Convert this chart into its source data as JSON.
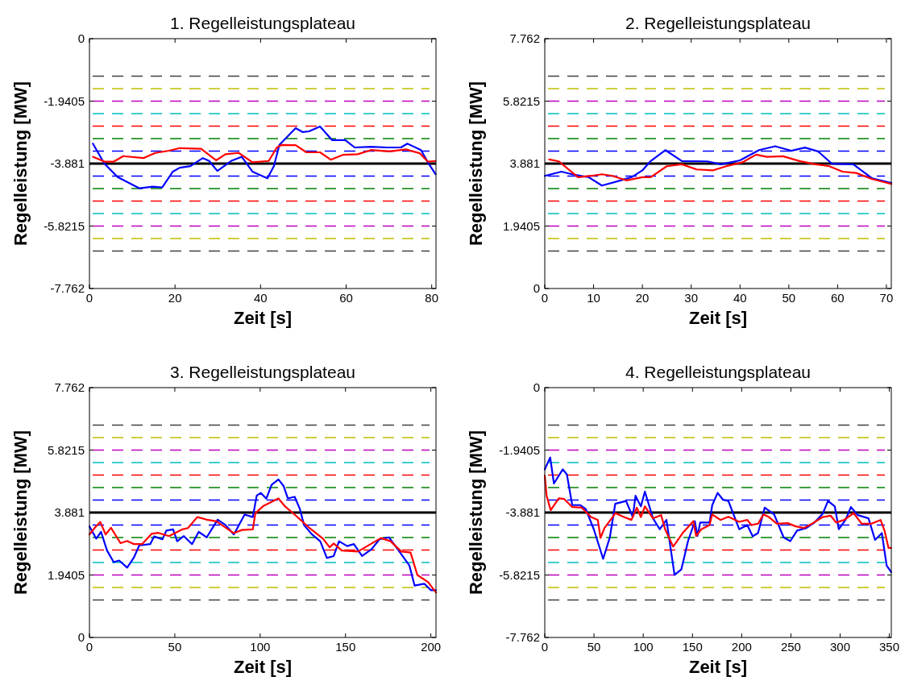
{
  "chart_data": [
    {
      "type": "line",
      "title": "1. Regelleistungsplateau",
      "xlabel": "Zeit [s]",
      "ylabel": "Regelleistung [MW]",
      "xlim": [
        0,
        81
      ],
      "xticks": [
        0,
        20,
        40,
        60,
        80
      ],
      "ylim": [
        -7.762,
        0
      ],
      "yticks": [
        -7.762,
        -5.8215,
        -3.881,
        -1.9405,
        0
      ],
      "ref_lines": [
        {
          "axis": "y",
          "value": -1.1643,
          "color": "#404040",
          "line_style": "dashed"
        },
        {
          "axis": "y",
          "value": -1.5524,
          "color": "#bfbf00",
          "line_style": "dashed"
        },
        {
          "axis": "y",
          "value": -1.9405,
          "color": "#bf00bf",
          "line_style": "dashed"
        },
        {
          "axis": "y",
          "value": -2.3286,
          "color": "#00bfbf",
          "line_style": "dashed"
        },
        {
          "axis": "y",
          "value": -2.7167,
          "color": "#ff0000",
          "line_style": "dashed"
        },
        {
          "axis": "y",
          "value": -3.1048,
          "color": "#008000",
          "line_style": "dashed"
        },
        {
          "axis": "y",
          "value": -3.4929,
          "color": "#0000ff",
          "line_style": "dashed"
        },
        {
          "axis": "y",
          "value": -4.2691,
          "color": "#0000ff",
          "line_style": "dashed"
        },
        {
          "axis": "y",
          "value": -4.6572,
          "color": "#008000",
          "line_style": "dashed"
        },
        {
          "axis": "y",
          "value": -5.0453,
          "color": "#ff0000",
          "line_style": "dashed"
        },
        {
          "axis": "y",
          "value": -5.4334,
          "color": "#00bfbf",
          "line_style": "dashed"
        },
        {
          "axis": "y",
          "value": -5.8215,
          "color": "#bf00bf",
          "line_style": "dashed"
        },
        {
          "axis": "y",
          "value": -6.2096,
          "color": "#bfbf00",
          "line_style": "dashed"
        },
        {
          "axis": "y",
          "value": -6.5977,
          "color": "#404040",
          "line_style": "dashed"
        },
        {
          "axis": "y",
          "value": -3.881,
          "color": "#000000",
          "line_style": "solid"
        }
      ],
      "series": [
        {
          "color": "#0000ff",
          "x": [
            0.8,
            3.5,
            6.6,
            11.7,
            14.8,
            17.0,
            19.5,
            21.1,
            23.6,
            26.5,
            28.0,
            29.9,
            33.1,
            35.6,
            38.1,
            41.6,
            43.1,
            44.4,
            48.2,
            49.8,
            51.3,
            53.9,
            56.7,
            59.8,
            62.0,
            65.8,
            69.6,
            72.8,
            74.3,
            77.5,
            79.1,
            80.9
          ],
          "values": [
            -3.26,
            -3.88,
            -4.3,
            -4.65,
            -4.6,
            -4.62,
            -4.13,
            -4.01,
            -3.96,
            -3.71,
            -3.8,
            -4.11,
            -3.8,
            -3.67,
            -4.13,
            -4.34,
            -3.96,
            -3.3,
            -2.78,
            -2.9,
            -2.88,
            -2.73,
            -3.15,
            -3.15,
            -3.38,
            -3.36,
            -3.38,
            -3.38,
            -3.26,
            -3.46,
            -3.84,
            -4.21
          ]
        },
        {
          "color": "#ff0000",
          "x": [
            0.8,
            3.5,
            5.7,
            7.9,
            12.6,
            15.4,
            18.6,
            21.1,
            26.1,
            29.6,
            31.8,
            34.9,
            38.1,
            41.9,
            43.8,
            45.0,
            48.2,
            50.7,
            53.9,
            56.4,
            59.2,
            62.7,
            65.8,
            70.2,
            74.0,
            77.2,
            79.1,
            80.9
          ],
          "values": [
            -3.67,
            -3.82,
            -3.82,
            -3.65,
            -3.71,
            -3.55,
            -3.48,
            -3.4,
            -3.42,
            -3.78,
            -3.59,
            -3.55,
            -3.84,
            -3.8,
            -3.38,
            -3.3,
            -3.31,
            -3.53,
            -3.53,
            -3.76,
            -3.61,
            -3.59,
            -3.46,
            -3.5,
            -3.44,
            -3.56,
            -3.82,
            -3.8
          ]
        }
      ]
    },
    {
      "type": "line",
      "title": "2. Regelleistungsplateau",
      "xlabel": "Zeit [s]",
      "ylabel": "Regelleistung [MW]",
      "xlim": [
        0,
        71
      ],
      "xticks": [
        0,
        10,
        20,
        30,
        40,
        50,
        60,
        70
      ],
      "ylim": [
        0,
        7.762
      ],
      "yticks": [
        0,
        1.9405,
        3.881,
        5.8215,
        7.762
      ],
      "ref_lines": [
        {
          "axis": "y",
          "value": 6.5977,
          "color": "#404040",
          "line_style": "dashed"
        },
        {
          "axis": "y",
          "value": 6.2096,
          "color": "#bfbf00",
          "line_style": "dashed"
        },
        {
          "axis": "y",
          "value": 5.8215,
          "color": "#bf00bf",
          "line_style": "dashed"
        },
        {
          "axis": "y",
          "value": 5.4334,
          "color": "#00bfbf",
          "line_style": "dashed"
        },
        {
          "axis": "y",
          "value": 5.0453,
          "color": "#ff0000",
          "line_style": "dashed"
        },
        {
          "axis": "y",
          "value": 4.6572,
          "color": "#008000",
          "line_style": "dashed"
        },
        {
          "axis": "y",
          "value": 4.2691,
          "color": "#0000ff",
          "line_style": "dashed"
        },
        {
          "axis": "y",
          "value": 3.4929,
          "color": "#0000ff",
          "line_style": "dashed"
        },
        {
          "axis": "y",
          "value": 3.1048,
          "color": "#008000",
          "line_style": "dashed"
        },
        {
          "axis": "y",
          "value": 2.7167,
          "color": "#ff0000",
          "line_style": "dashed"
        },
        {
          "axis": "y",
          "value": 2.3286,
          "color": "#00bfbf",
          "line_style": "dashed"
        },
        {
          "axis": "y",
          "value": 1.9405,
          "color": "#bf00bf",
          "line_style": "dashed"
        },
        {
          "axis": "y",
          "value": 1.5524,
          "color": "#bfbf00",
          "line_style": "dashed"
        },
        {
          "axis": "y",
          "value": 1.1643,
          "color": "#404040",
          "line_style": "dashed"
        },
        {
          "axis": "y",
          "value": 3.881,
          "color": "#000000",
          "line_style": "solid"
        }
      ],
      "series": [
        {
          "color": "#0000ff",
          "x": [
            0,
            3.4,
            5.6,
            9.0,
            11.7,
            15.1,
            17.8,
            20.0,
            21.7,
            24.7,
            28.1,
            33.3,
            36.1,
            40.0,
            43.9,
            47.2,
            50.5,
            53.3,
            56.0,
            58.8,
            63.2,
            67.1,
            71.0
          ],
          "values": [
            3.5,
            3.63,
            3.55,
            3.46,
            3.2,
            3.34,
            3.46,
            3.67,
            3.96,
            4.3,
            3.96,
            3.95,
            3.86,
            3.98,
            4.3,
            4.42,
            4.28,
            4.38,
            4.26,
            3.88,
            3.86,
            3.42,
            3.28
          ]
        },
        {
          "color": "#ff0000",
          "x": [
            0.9,
            2.9,
            6.8,
            9.5,
            11.7,
            13.9,
            16.7,
            20.0,
            21.7,
            25.0,
            28.1,
            31.1,
            34.4,
            37.2,
            40.5,
            43.3,
            45.5,
            48.8,
            52.2,
            55.5,
            58.3,
            61.0,
            63.8,
            67.1,
            71.0
          ],
          "values": [
            4.01,
            3.95,
            3.46,
            3.5,
            3.55,
            3.5,
            3.36,
            3.46,
            3.46,
            3.8,
            3.86,
            3.7,
            3.67,
            3.8,
            3.92,
            4.16,
            4.09,
            4.11,
            3.96,
            3.86,
            3.8,
            3.63,
            3.59,
            3.4,
            3.25
          ]
        }
      ]
    },
    {
      "type": "line",
      "title": "3. Regelleistungsplateau",
      "xlabel": "Zeit [s]",
      "ylabel": "Regelleistung [MW]",
      "xlim": [
        0,
        203
      ],
      "xticks": [
        0,
        50,
        100,
        150,
        200
      ],
      "ylim": [
        0,
        7.762
      ],
      "yticks": [
        0,
        1.9405,
        3.881,
        5.8215,
        7.762
      ],
      "ref_lines": [
        {
          "axis": "y",
          "value": 6.5977,
          "color": "#404040",
          "line_style": "dashed"
        },
        {
          "axis": "y",
          "value": 6.2096,
          "color": "#bfbf00",
          "line_style": "dashed"
        },
        {
          "axis": "y",
          "value": 5.8215,
          "color": "#bf00bf",
          "line_style": "dashed"
        },
        {
          "axis": "y",
          "value": 5.4334,
          "color": "#00bfbf",
          "line_style": "dashed"
        },
        {
          "axis": "y",
          "value": 5.0453,
          "color": "#ff0000",
          "line_style": "dashed"
        },
        {
          "axis": "y",
          "value": 4.6572,
          "color": "#008000",
          "line_style": "dashed"
        },
        {
          "axis": "y",
          "value": 4.2691,
          "color": "#0000ff",
          "line_style": "dashed"
        },
        {
          "axis": "y",
          "value": 3.4929,
          "color": "#0000ff",
          "line_style": "dashed"
        },
        {
          "axis": "y",
          "value": 3.1048,
          "color": "#008000",
          "line_style": "dashed"
        },
        {
          "axis": "y",
          "value": 2.7167,
          "color": "#ff0000",
          "line_style": "dashed"
        },
        {
          "axis": "y",
          "value": 2.3286,
          "color": "#00bfbf",
          "line_style": "dashed"
        },
        {
          "axis": "y",
          "value": 1.9405,
          "color": "#bf00bf",
          "line_style": "dashed"
        },
        {
          "axis": "y",
          "value": 1.5524,
          "color": "#bfbf00",
          "line_style": "dashed"
        },
        {
          "axis": "y",
          "value": 1.1643,
          "color": "#404040",
          "line_style": "dashed"
        },
        {
          "axis": "y",
          "value": 3.881,
          "color": "#000000",
          "line_style": "solid"
        }
      ],
      "series": [
        {
          "color": "#0000ff",
          "x": [
            0,
            4.0,
            6.8,
            10.3,
            14.2,
            17.4,
            22.1,
            26.1,
            29.2,
            35.6,
            37.9,
            42.7,
            45.1,
            49.0,
            51.4,
            55.3,
            60.1,
            64.0,
            68.7,
            75.1,
            79.8,
            84.6,
            90.9,
            95.7,
            98.0,
            100.4,
            103.6,
            106.7,
            110.7,
            113.8,
            116.2,
            120.2,
            123.3,
            125.7,
            130.4,
            135.2,
            139.1,
            143.1,
            146.2,
            151.0,
            154.9,
            159.7,
            165.2,
            169.9,
            175.5,
            181.8,
            187.4,
            190.5,
            196.1,
            200.0,
            203
          ],
          "values": [
            3.45,
            3.07,
            3.28,
            2.7,
            2.34,
            2.39,
            2.17,
            2.49,
            2.86,
            2.9,
            3.14,
            3.05,
            3.32,
            3.36,
            2.99,
            3.15,
            2.9,
            3.28,
            3.11,
            3.66,
            3.49,
            3.2,
            3.82,
            3.74,
            4.41,
            4.49,
            4.31,
            4.74,
            4.91,
            4.7,
            4.32,
            4.37,
            3.99,
            3.49,
            3.2,
            2.99,
            2.47,
            2.53,
            2.99,
            2.84,
            2.9,
            2.53,
            2.74,
            3.05,
            3.11,
            2.65,
            2.24,
            1.61,
            1.67,
            1.47,
            1.47
          ]
        },
        {
          "color": "#ff0000",
          "x": [
            0,
            3.2,
            6.3,
            9.5,
            12.6,
            18.2,
            22.1,
            26.1,
            30.8,
            36.4,
            40.3,
            46.6,
            54.5,
            57.7,
            63.2,
            68.7,
            74.3,
            84.6,
            89.3,
            95.7,
            97.2,
            102.0,
            110.7,
            114.6,
            121.0,
            128.9,
            136.8,
            140.7,
            143.1,
            147.8,
            157.3,
            162.1,
            170.8,
            176.4,
            182.7,
            188.1,
            192.1,
            198.4,
            203
          ],
          "values": [
            3.2,
            3.41,
            3.59,
            3.2,
            3.41,
            2.93,
            3.0,
            2.9,
            2.9,
            3.22,
            3.25,
            3.15,
            3.36,
            3.4,
            3.74,
            3.66,
            3.61,
            3.24,
            3.34,
            3.36,
            3.86,
            4.09,
            4.32,
            4.07,
            3.78,
            3.4,
            3.07,
            2.8,
            2.92,
            2.7,
            2.67,
            2.82,
            3.09,
            2.99,
            2.67,
            2.64,
            1.94,
            1.72,
            1.4
          ]
        }
      ]
    },
    {
      "type": "line",
      "title": "4. Regelleistungsplateau",
      "xlabel": "Zeit [s]",
      "ylabel": "Regelleistung [MW]",
      "xlim": [
        0,
        352
      ],
      "xticks": [
        0,
        50,
        100,
        150,
        200,
        250,
        300,
        350
      ],
      "ylim": [
        -7.762,
        0
      ],
      "yticks": [
        -7.762,
        -5.8215,
        -3.881,
        -1.9405,
        0
      ],
      "ref_lines": [
        {
          "axis": "y",
          "value": -1.1643,
          "color": "#404040",
          "line_style": "dashed"
        },
        {
          "axis": "y",
          "value": -1.5524,
          "color": "#bfbf00",
          "line_style": "dashed"
        },
        {
          "axis": "y",
          "value": -1.9405,
          "color": "#bf00bf",
          "line_style": "dashed"
        },
        {
          "axis": "y",
          "value": -2.3286,
          "color": "#00bfbf",
          "line_style": "dashed"
        },
        {
          "axis": "y",
          "value": -2.7167,
          "color": "#ff0000",
          "line_style": "dashed"
        },
        {
          "axis": "y",
          "value": -3.1048,
          "color": "#008000",
          "line_style": "dashed"
        },
        {
          "axis": "y",
          "value": -3.4929,
          "color": "#0000ff",
          "line_style": "dashed"
        },
        {
          "axis": "y",
          "value": -4.2691,
          "color": "#0000ff",
          "line_style": "dashed"
        },
        {
          "axis": "y",
          "value": -4.6572,
          "color": "#008000",
          "line_style": "dashed"
        },
        {
          "axis": "y",
          "value": -5.0453,
          "color": "#ff0000",
          "line_style": "dashed"
        },
        {
          "axis": "y",
          "value": -5.4334,
          "color": "#00bfbf",
          "line_style": "dashed"
        },
        {
          "axis": "y",
          "value": -5.8215,
          "color": "#bf00bf",
          "line_style": "dashed"
        },
        {
          "axis": "y",
          "value": -6.2096,
          "color": "#bfbf00",
          "line_style": "dashed"
        },
        {
          "axis": "y",
          "value": -6.5977,
          "color": "#404040",
          "line_style": "dashed"
        },
        {
          "axis": "y",
          "value": -3.881,
          "color": "#000000",
          "line_style": "solid"
        }
      ],
      "series": [
        {
          "color": "#0000ff",
          "x": [
            0,
            5.5,
            9.3,
            18.3,
            22.4,
            27.9,
            36.1,
            41.6,
            49.8,
            59.3,
            66.1,
            71.6,
            82.6,
            89.4,
            92.2,
            97.6,
            101.7,
            109.9,
            116.8,
            123.6,
            131.8,
            138.7,
            145.5,
            152.4,
            155.1,
            157.9,
            167.4,
            170.1,
            175.6,
            181.0,
            186.5,
            197.5,
            205.7,
            211.2,
            216.6,
            223.4,
            233.0,
            242.6,
            249.4,
            256.3,
            265.8,
            274.0,
            282.3,
            287.7,
            294.6,
            298.7,
            305.5,
            311.0,
            317.8,
            328.8,
            335.5,
            342.4,
            347.3,
            351.9
          ],
          "values": [
            -2.54,
            -2.17,
            -2.98,
            -2.54,
            -2.69,
            -3.65,
            -3.65,
            -3.77,
            -4.4,
            -5.32,
            -4.65,
            -3.61,
            -3.52,
            -4.02,
            -3.36,
            -3.69,
            -3.23,
            -4.06,
            -4.4,
            -4.11,
            -5.82,
            -5.65,
            -4.77,
            -4.15,
            -4.61,
            -4.19,
            -4.19,
            -3.65,
            -3.27,
            -3.48,
            -3.52,
            -4.4,
            -4.27,
            -4.62,
            -4.52,
            -3.73,
            -3.94,
            -4.65,
            -4.77,
            -4.44,
            -4.36,
            -4.19,
            -3.92,
            -3.52,
            -3.69,
            -4.4,
            -4.11,
            -3.71,
            -3.96,
            -4.06,
            -4.73,
            -4.52,
            -5.53,
            -5.73
          ]
        },
        {
          "color": "#ff0000",
          "x": [
            0,
            1.9,
            6.0,
            14.2,
            19.7,
            27.9,
            37.5,
            47.0,
            53.9,
            56.6,
            60.7,
            68.9,
            71.6,
            79.8,
            88.0,
            93.5,
            97.6,
            101.7,
            109.9,
            118.2,
            122.2,
            130.4,
            140.0,
            150.9,
            153.7,
            159.1,
            167.4,
            170.1,
            178.4,
            186.5,
            197.5,
            205.7,
            209.8,
            216.6,
            222.1,
            227.6,
            235.8,
            246.7,
            254.9,
            263.1,
            271.3,
            282.3,
            290.5,
            295.9,
            304.2,
            313.7,
            321.9,
            331.5,
            341.1,
            345.1,
            349.2,
            351.9
          ],
          "values": [
            -2.73,
            -3.36,
            -3.81,
            -3.44,
            -3.46,
            -3.71,
            -3.73,
            -4.02,
            -4.11,
            -4.67,
            -4.36,
            -4.02,
            -3.9,
            -4.01,
            -4.11,
            -3.73,
            -4.02,
            -3.69,
            -4.06,
            -3.96,
            -4.4,
            -4.94,
            -4.52,
            -4.15,
            -4.61,
            -4.4,
            -4.27,
            -3.94,
            -4.11,
            -4.01,
            -4.17,
            -4.11,
            -4.27,
            -4.23,
            -3.94,
            -4.02,
            -4.23,
            -4.21,
            -4.31,
            -4.36,
            -4.23,
            -4.02,
            -3.98,
            -4.19,
            -4.11,
            -3.9,
            -4.23,
            -4.23,
            -4.11,
            -4.44,
            -4.98,
            -4.98
          ]
        }
      ]
    }
  ]
}
